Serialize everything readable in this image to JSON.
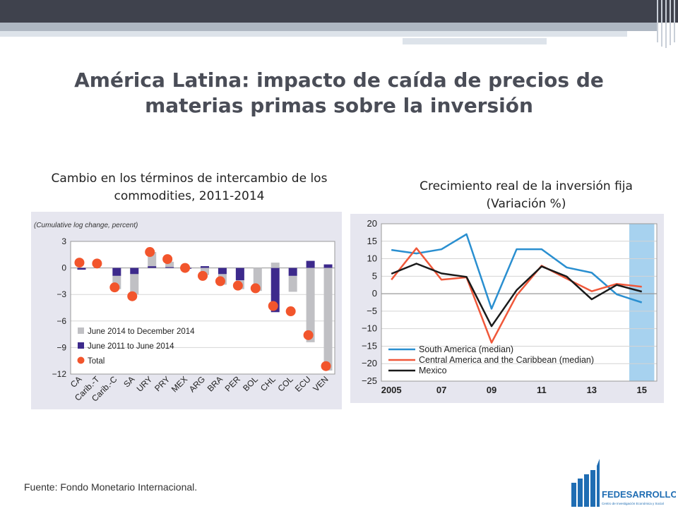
{
  "slide": {
    "title": "América Latina: impacto de caída de precios de materias primas sobre la inversión",
    "left_subtitle": "Cambio en los términos de intercambio de los commodities, 2011-2014",
    "right_subtitle": "Crecimiento real de la inversión fija (Variación %)",
    "footer": "Fuente: Fondo Monetario Internacional.",
    "logo_text": "FEDESARROLLO",
    "logo_subtext": "Centro de Investigación Económica y Social"
  },
  "colors": {
    "topbar": "#3f424d",
    "title": "#4a4d57",
    "gray_bar": "#c0c0c4",
    "navy_bar": "#3d2a8c",
    "total_dot": "#f2552c",
    "south_america": "#2a8fd0",
    "central_america": "#f0583a",
    "mexico": "#1a1a1a",
    "forecast_band": "#a7d2ef",
    "logo_blue": "#1f6db3"
  },
  "chart_data": [
    {
      "type": "bar",
      "title": "(Cumulative log change, percent)",
      "categories": [
        "CA",
        "Carib.-T",
        "Carib.-C",
        "SA",
        "URY",
        "PRY",
        "MEX",
        "ARG",
        "BRA",
        "PER",
        "BOL",
        "CHL",
        "COL",
        "ECU",
        "VEN"
      ],
      "series": [
        {
          "name": "June 2014 to December 2014",
          "values": [
            0,
            0,
            -1.5,
            -2.3,
            1.6,
            0.6,
            0.1,
            -0.8,
            -1.2,
            -1.0,
            -2.6,
            0.6,
            -1.8,
            -8.4,
            -11.6
          ]
        },
        {
          "name": "June 2011 to June 2014",
          "values": [
            -0.2,
            0,
            -0.9,
            -0.7,
            0.2,
            0.1,
            -0.1,
            0.2,
            -0.7,
            -1.4,
            0.0,
            -5.0,
            -0.9,
            0.8,
            0.4
          ]
        },
        {
          "name": "Total",
          "values": [
            0.6,
            0.5,
            -2.2,
            -3.2,
            1.8,
            1.0,
            0.0,
            -0.9,
            -1.5,
            -2.0,
            -2.3,
            -4.3,
            -4.9,
            -7.6,
            -11.1
          ]
        }
      ],
      "ylim": [
        -12,
        3
      ],
      "yticks": [
        "3",
        "0",
        "−3",
        "−6",
        "−9",
        "−12"
      ],
      "legend": "bottom-left",
      "grid": true
    },
    {
      "type": "line",
      "x": [
        2005,
        2006,
        2007,
        2008,
        2009,
        2010,
        2011,
        2012,
        2013,
        2014,
        2015
      ],
      "xticks": [
        "2005",
        "07",
        "09",
        "11",
        "13",
        "15"
      ],
      "series": [
        {
          "name": "South America (median)",
          "values": [
            12.5,
            11.5,
            12.7,
            17.0,
            -4.3,
            12.7,
            12.7,
            7.5,
            6.0,
            -0.2,
            -2.5
          ]
        },
        {
          "name": "Central America and the Caribbean (median)",
          "values": [
            4.0,
            13.0,
            4.0,
            4.7,
            -14.0,
            -0.5,
            8.0,
            4.3,
            0.7,
            2.8,
            2.0
          ]
        },
        {
          "name": "Mexico",
          "values": [
            5.7,
            8.6,
            5.8,
            4.8,
            -9.3,
            1.0,
            7.8,
            4.9,
            -1.6,
            2.5,
            0.6
          ]
        }
      ],
      "ylim": [
        -25,
        20
      ],
      "yticks": [
        "20",
        "15",
        "10",
        "5",
        "0",
        "−5",
        "−10",
        "−15",
        "−20",
        "−25"
      ],
      "forecast_shading": [
        2014.5,
        2015.5
      ],
      "legend": "bottom-left",
      "grid": true
    }
  ]
}
